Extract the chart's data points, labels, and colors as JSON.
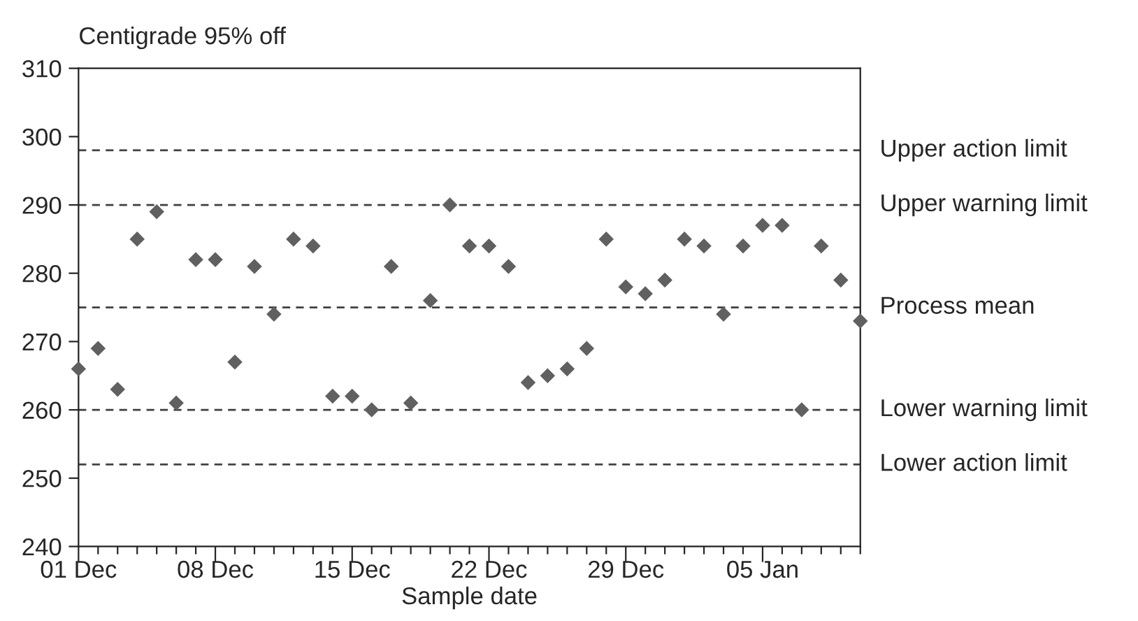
{
  "chart_data": {
    "type": "scatter",
    "ylabel": "Centigrade 95% off",
    "xlabel": "Sample date",
    "categories": [
      "01 Dec",
      null,
      null,
      null,
      null,
      null,
      null,
      "08 Dec",
      null,
      null,
      null,
      null,
      null,
      null,
      "15 Dec",
      null,
      null,
      null,
      null,
      null,
      null,
      "22 Dec",
      null,
      null,
      null,
      null,
      null,
      null,
      "29 Dec",
      null,
      null,
      null,
      null,
      null,
      null,
      "05 Jan",
      null,
      null,
      null,
      null,
      null
    ],
    "series": [
      {
        "color": "#606060",
        "values": [
          266,
          269,
          263,
          285,
          289,
          261,
          282,
          282,
          267,
          281,
          274,
          285,
          284,
          262,
          262,
          260,
          281,
          261,
          276,
          290,
          284,
          284,
          281,
          264,
          265,
          266,
          269,
          285,
          278,
          277,
          279,
          285,
          284,
          274,
          284,
          287,
          287,
          260,
          284,
          279,
          273
        ]
      }
    ],
    "marker": "diamond",
    "ylim": [
      240,
      310
    ],
    "yticks": [
      240,
      250,
      260,
      270,
      280,
      290,
      300,
      310
    ],
    "ref_lines": [
      {
        "axis": "y",
        "value": 298,
        "label": "Upper action limit",
        "color": "#404040",
        "line_style": "dashed"
      },
      {
        "axis": "y",
        "value": 290,
        "label": "Upper warning limit",
        "color": "#404040",
        "line_style": "dashed"
      },
      {
        "axis": "y",
        "value": 275,
        "label": "Process mean",
        "color": "#404040",
        "line_style": "dashed"
      },
      {
        "axis": "y",
        "value": 260,
        "label": "Lower warning limit",
        "color": "#404040",
        "line_style": "dashed"
      },
      {
        "axis": "y",
        "value": 252,
        "label": "Lower action limit",
        "color": "#404040",
        "line_style": "dashed"
      }
    ]
  }
}
